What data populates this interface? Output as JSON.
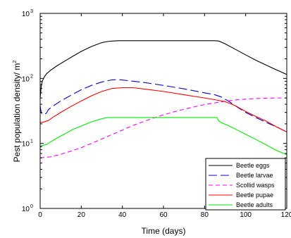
{
  "chart_data": {
    "type": "line",
    "xlabel": "Time (days)",
    "ylabel": "Pest population density/ m",
    "ylabel_sup": "2",
    "xlim": [
      0,
      120
    ],
    "ylim": [
      1,
      1000
    ],
    "yscale": "log",
    "grid": false,
    "legend_placement": "bottom-right",
    "x_ticks": [
      {
        "value": 0,
        "label": "0"
      },
      {
        "value": 20,
        "label": "20"
      },
      {
        "value": 40,
        "label": "40"
      },
      {
        "value": 60,
        "label": "60"
      },
      {
        "value": 80,
        "label": "80"
      },
      {
        "value": 100,
        "label": "100"
      },
      {
        "value": 120,
        "label": "120"
      }
    ],
    "y_ticks": [
      {
        "value": 1,
        "base": "10",
        "exp": "0"
      },
      {
        "value": 10,
        "base": "10",
        "exp": "1"
      },
      {
        "value": 100,
        "base": "10",
        "exp": "2"
      },
      {
        "value": 1000,
        "base": "10",
        "exp": "3"
      }
    ],
    "series": [
      {
        "name": "Beetle eggs",
        "color": "#000000",
        "dash": "solid",
        "points": [
          [
            0,
            50
          ],
          [
            0.5,
            75
          ],
          [
            1,
            90
          ],
          [
            2,
            105
          ],
          [
            3,
            117
          ],
          [
            5,
            133
          ],
          [
            8,
            155
          ],
          [
            12,
            185
          ],
          [
            16,
            220
          ],
          [
            20,
            260
          ],
          [
            25,
            310
          ],
          [
            30,
            355
          ],
          [
            33,
            370
          ],
          [
            35,
            375
          ],
          [
            38,
            380
          ],
          [
            50,
            380
          ],
          [
            60,
            380
          ],
          [
            70,
            380
          ],
          [
            80,
            380
          ],
          [
            85,
            380
          ],
          [
            87,
            375
          ],
          [
            90,
            340
          ],
          [
            95,
            280
          ],
          [
            100,
            230
          ],
          [
            105,
            190
          ],
          [
            110,
            160
          ],
          [
            115,
            135
          ],
          [
            120,
            115
          ]
        ]
      },
      {
        "name": "Beetle larvae",
        "color": "#0000cc",
        "dash": "long-dash",
        "points": [
          [
            0,
            38
          ],
          [
            0.5,
            30
          ],
          [
            1,
            28
          ],
          [
            2,
            28
          ],
          [
            3,
            29
          ],
          [
            4,
            33
          ],
          [
            6,
            37
          ],
          [
            10,
            45
          ],
          [
            15,
            55
          ],
          [
            20,
            67
          ],
          [
            25,
            78
          ],
          [
            30,
            88
          ],
          [
            35,
            95
          ],
          [
            38,
            96
          ],
          [
            42,
            93
          ],
          [
            50,
            87
          ],
          [
            60,
            78
          ],
          [
            70,
            69
          ],
          [
            80,
            60
          ],
          [
            85,
            56
          ],
          [
            88,
            52
          ],
          [
            92,
            44
          ],
          [
            96,
            36
          ],
          [
            100,
            30
          ],
          [
            105,
            25
          ],
          [
            110,
            21
          ],
          [
            115,
            18
          ],
          [
            120,
            15
          ]
        ]
      },
      {
        "name": "Scollid wasps",
        "color": "#ff00ff",
        "dash": "dash",
        "points": [
          [
            0,
            6
          ],
          [
            5,
            6.2
          ],
          [
            10,
            6.8
          ],
          [
            15,
            7.6
          ],
          [
            20,
            8.6
          ],
          [
            25,
            10
          ],
          [
            30,
            11.7
          ],
          [
            35,
            13.7
          ],
          [
            40,
            16
          ],
          [
            45,
            18.8
          ],
          [
            50,
            21.5
          ],
          [
            55,
            24.5
          ],
          [
            60,
            27.5
          ],
          [
            65,
            30.5
          ],
          [
            70,
            33.5
          ],
          [
            75,
            36.5
          ],
          [
            80,
            39.5
          ],
          [
            85,
            42
          ],
          [
            90,
            44.5
          ],
          [
            95,
            46.5
          ],
          [
            100,
            48
          ],
          [
            105,
            49
          ],
          [
            110,
            49.5
          ],
          [
            115,
            50
          ],
          [
            120,
            50
          ]
        ]
      },
      {
        "name": "Beetle pupae",
        "color": "#ff0000",
        "dash": "solid",
        "points": [
          [
            0,
            21
          ],
          [
            0.3,
            21
          ],
          [
            1,
            21
          ],
          [
            3,
            22
          ],
          [
            4,
            22.5
          ],
          [
            6,
            25
          ],
          [
            10,
            30
          ],
          [
            15,
            37
          ],
          [
            20,
            45
          ],
          [
            25,
            54
          ],
          [
            30,
            63
          ],
          [
            35,
            70
          ],
          [
            40,
            72
          ],
          [
            45,
            72
          ],
          [
            50,
            69
          ],
          [
            60,
            63
          ],
          [
            70,
            56
          ],
          [
            80,
            50
          ],
          [
            85,
            47
          ],
          [
            90,
            44
          ],
          [
            95,
            38
          ],
          [
            100,
            31
          ],
          [
            105,
            26
          ],
          [
            110,
            22
          ],
          [
            115,
            18
          ],
          [
            120,
            15
          ]
        ]
      },
      {
        "name": "Beetle adults",
        "color": "#00ee00",
        "dash": "solid",
        "points": [
          [
            0,
            8.5
          ],
          [
            0.5,
            9
          ],
          [
            1,
            9.3
          ],
          [
            3,
            9.6
          ],
          [
            5,
            10.5
          ],
          [
            8,
            12
          ],
          [
            12,
            14
          ],
          [
            16,
            16.5
          ],
          [
            20,
            18.5
          ],
          [
            25,
            21.5
          ],
          [
            30,
            24
          ],
          [
            33,
            25
          ],
          [
            36,
            25
          ],
          [
            50,
            25
          ],
          [
            60,
            25
          ],
          [
            70,
            25
          ],
          [
            80,
            25
          ],
          [
            86,
            25
          ],
          [
            87,
            22
          ],
          [
            88,
            21
          ],
          [
            92,
            18.5
          ],
          [
            96,
            16
          ],
          [
            100,
            13.8
          ],
          [
            105,
            11.5
          ],
          [
            110,
            9.5
          ],
          [
            115,
            7.8
          ],
          [
            120,
            6.7
          ]
        ]
      }
    ]
  }
}
